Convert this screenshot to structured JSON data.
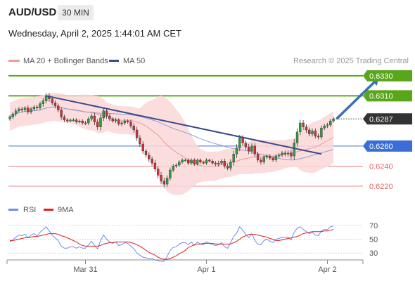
{
  "header": {
    "symbol": "AUD/USD",
    "timeframe": "30 MIN",
    "datetime": "Wednesday, April 2, 2025 1:44:01 AM CET"
  },
  "legend": {
    "ma20_label": "MA 20 + Bollinger Bands",
    "ma50_label": "MA 50",
    "credit": "Research © 2025 Trading Central",
    "rsi_label": "RSI",
    "rsi_ma_label": "9MA"
  },
  "colors": {
    "candle_up": "#2e9a3e",
    "candle_down": "#c8323a",
    "bollinger_fill": "#fcd7d7",
    "ma20": "#e89b9b",
    "ma50": "#8da0cc",
    "trendline": "#3a4b8c",
    "resistance": "#5aa61a",
    "pivot": "#3b6dd6",
    "support": "#e06666",
    "current_price_box": "#333333",
    "forecast_arrow": "#3a6fb8",
    "rsi_line": "#6a8ee8",
    "rsi_ma_line": "#e02020",
    "grid": "#bbbbbb"
  },
  "chart_data": [
    {
      "type": "candlestick",
      "title": "AUD/USD",
      "timeframe": "30 MIN",
      "x_ticks": [
        "Mar 31",
        "Apr 1",
        "Apr 2"
      ],
      "ylim": [
        0.6206,
        0.6339
      ],
      "levels": [
        {
          "price": 0.633,
          "label": "0.6330",
          "kind": "resistance"
        },
        {
          "price": 0.631,
          "label": "0.6310",
          "kind": "resistance"
        },
        {
          "price": 0.626,
          "label": "0.6260",
          "kind": "pivot"
        },
        {
          "price": 0.624,
          "label": "0.6240",
          "kind": "support"
        },
        {
          "price": 0.622,
          "label": "0.6220",
          "kind": "support"
        }
      ],
      "current_price": {
        "price": 0.6287,
        "label": "0.6287"
      },
      "trendline": {
        "from": {
          "bar": 12,
          "price": 0.631
        },
        "to": {
          "bar": 103,
          "price": 0.6252
        }
      },
      "forecast_arrow": {
        "from": {
          "bar": 108,
          "price": 0.6287
        },
        "to": {
          "bar": 122,
          "price": 0.6328
        }
      },
      "close": [
        0.6289,
        0.6292,
        0.6295,
        0.6297,
        0.6296,
        0.6298,
        0.6294,
        0.6297,
        0.6299,
        0.6298,
        0.6302,
        0.6305,
        0.631,
        0.6307,
        0.6303,
        0.63,
        0.6296,
        0.6289,
        0.6286,
        0.6285,
        0.6286,
        0.6286,
        0.6284,
        0.6285,
        0.6283,
        0.6283,
        0.6287,
        0.629,
        0.6284,
        0.6279,
        0.6288,
        0.6295,
        0.629,
        0.6287,
        0.6285,
        0.6286,
        0.6282,
        0.6283,
        0.6285,
        0.6284,
        0.628,
        0.6276,
        0.6268,
        0.6262,
        0.6255,
        0.6251,
        0.6247,
        0.6243,
        0.6237,
        0.6231,
        0.6225,
        0.6222,
        0.6228,
        0.6236,
        0.624,
        0.6241,
        0.6244,
        0.6246,
        0.6246,
        0.6243,
        0.6246,
        0.6242,
        0.6246,
        0.6244,
        0.6243,
        0.6246,
        0.6245,
        0.6243,
        0.6242,
        0.6243,
        0.6245,
        0.624,
        0.6238,
        0.6244,
        0.6252,
        0.6258,
        0.6268,
        0.6263,
        0.6259,
        0.6255,
        0.626,
        0.6252,
        0.6246,
        0.6244,
        0.6249,
        0.625,
        0.6248,
        0.6246,
        0.625,
        0.6251,
        0.6253,
        0.6252,
        0.6253,
        0.625,
        0.6263,
        0.6274,
        0.6283,
        0.6279,
        0.6276,
        0.6272,
        0.6275,
        0.627,
        0.6269,
        0.6278,
        0.628,
        0.6281,
        0.6285,
        0.6287
      ],
      "range": [
        0.0005,
        0.0006,
        0.0007,
        0.0005,
        0.0006,
        0.0005,
        0.0007,
        0.0006,
        0.0005,
        0.0006,
        0.0006,
        0.0008,
        0.0007,
        0.0008,
        0.0006,
        0.0007,
        0.0007,
        0.0008,
        0.0006,
        0.0005,
        0.0004,
        0.0005,
        0.0005,
        0.0004,
        0.0005,
        0.0006,
        0.0006,
        0.0007,
        0.0009,
        0.0008,
        0.001,
        0.0009,
        0.0008,
        0.0006,
        0.0005,
        0.0006,
        0.0005,
        0.0006,
        0.0006,
        0.0005,
        0.0007,
        0.0008,
        0.0009,
        0.0008,
        0.0008,
        0.0007,
        0.0008,
        0.0007,
        0.0008,
        0.0009,
        0.0009,
        0.001,
        0.0008,
        0.0007,
        0.0006,
        0.0005,
        0.0005,
        0.0005,
        0.0004,
        0.0005,
        0.0005,
        0.0005,
        0.0004,
        0.0005,
        0.0004,
        0.0005,
        0.0004,
        0.0005,
        0.0006,
        0.0007,
        0.0006,
        0.0007,
        0.0006,
        0.0008,
        0.001,
        0.0011,
        0.0009,
        0.0008,
        0.0008,
        0.0009,
        0.0008,
        0.0008,
        0.0007,
        0.0007,
        0.0006,
        0.0006,
        0.0006,
        0.0005,
        0.0006,
        0.0006,
        0.0006,
        0.0007,
        0.0008,
        0.0009,
        0.0011,
        0.001,
        0.0009,
        0.0008,
        0.0008,
        0.0007,
        0.0007,
        0.0007,
        0.0007,
        0.0007,
        0.0006,
        0.0006,
        0.0006,
        0.0005
      ]
    },
    {
      "type": "line",
      "title": "RSI",
      "y_ticks": [
        70,
        50,
        30
      ],
      "ylim": [
        15,
        85
      ],
      "series": [
        {
          "name": "RSI",
          "values": [
            46,
            49,
            53,
            56,
            55,
            57,
            52,
            56,
            58,
            55,
            60,
            64,
            68,
            62,
            56,
            52,
            48,
            40,
            37,
            37,
            39,
            39,
            37,
            39,
            37,
            37,
            42,
            47,
            41,
            36,
            48,
            56,
            50,
            46,
            44,
            46,
            41,
            42,
            45,
            44,
            40,
            36,
            30,
            27,
            24,
            23,
            22,
            22,
            20,
            19,
            18,
            18,
            25,
            34,
            38,
            39,
            43,
            45,
            45,
            42,
            46,
            41,
            46,
            43,
            42,
            46,
            44,
            42,
            41,
            42,
            45,
            39,
            37,
            45,
            54,
            59,
            68,
            63,
            57,
            52,
            58,
            48,
            43,
            42,
            48,
            50,
            47,
            45,
            50,
            51,
            53,
            52,
            53,
            49,
            60,
            66,
            68,
            64,
            61,
            58,
            60,
            56,
            55,
            62,
            64,
            64,
            68,
            69
          ]
        },
        {
          "name": "9MA",
          "values": [
            48,
            48,
            49,
            50,
            51,
            52,
            52,
            53,
            54,
            54,
            55,
            56,
            57,
            58,
            58,
            58,
            57,
            55,
            54,
            52,
            50,
            48,
            46,
            43,
            41,
            40,
            40,
            40,
            40,
            40,
            41,
            43,
            44,
            45,
            45,
            46,
            46,
            46,
            46,
            46,
            45,
            44,
            42,
            40,
            37,
            34,
            31,
            29,
            27,
            24,
            22,
            21,
            21,
            22,
            24,
            26,
            29,
            31,
            34,
            38,
            40,
            42,
            43,
            43,
            44,
            44,
            44,
            44,
            43,
            43,
            43,
            43,
            43,
            43,
            45,
            47,
            50,
            53,
            55,
            57,
            57,
            57,
            56,
            55,
            54,
            53,
            51,
            50,
            48,
            48,
            49,
            50,
            51,
            52,
            53,
            54,
            56,
            58,
            59,
            60,
            61,
            61,
            61,
            61,
            62,
            62,
            63,
            64
          ]
        }
      ]
    }
  ]
}
